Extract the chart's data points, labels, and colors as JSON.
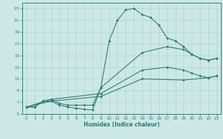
{
  "xlabel": "Humidex (Indice chaleur)",
  "bg_color": "#cce8e4",
  "grid_color": "#aad4cc",
  "line_color": "#2d7a6e",
  "xlim": [
    -0.5,
    23.5
  ],
  "ylim": [
    5,
    24
  ],
  "xticks": [
    0,
    1,
    2,
    3,
    4,
    5,
    6,
    7,
    8,
    9,
    10,
    11,
    12,
    13,
    14,
    15,
    16,
    17,
    18,
    19,
    20,
    21,
    22,
    23
  ],
  "yticks": [
    5,
    7,
    9,
    11,
    13,
    15,
    17,
    19,
    21,
    23
  ],
  "line1_x": [
    0,
    1,
    2,
    3,
    4,
    5,
    6,
    7,
    8,
    9,
    10,
    11,
    12,
    13,
    14,
    15,
    16,
    17,
    18,
    19,
    20,
    21,
    22,
    23
  ],
  "line1_y": [
    6.2,
    6.2,
    7.2,
    7.2,
    6.5,
    6.2,
    6.0,
    5.8,
    5.7,
    9.5,
    17.5,
    21.0,
    22.8,
    23.0,
    22.0,
    21.5,
    20.2,
    18.0,
    17.5,
    16.5,
    15.2,
    14.5,
    14.2,
    14.5
  ],
  "line2_x": [
    0,
    1,
    2,
    3,
    4,
    5,
    6,
    7,
    8,
    9,
    14,
    17,
    19,
    20,
    21,
    22,
    23
  ],
  "line2_y": [
    6.2,
    6.2,
    7.2,
    7.5,
    6.8,
    6.5,
    6.5,
    6.5,
    6.5,
    9.5,
    15.5,
    16.5,
    16.0,
    15.2,
    14.5,
    14.2,
    14.5
  ],
  "line3_x": [
    0,
    3,
    9,
    14,
    17,
    19,
    20,
    21,
    22,
    23
  ],
  "line3_y": [
    6.2,
    7.5,
    8.5,
    12.5,
    13.0,
    12.5,
    12.0,
    11.5,
    11.2,
    11.5
  ],
  "line4_x": [
    0,
    3,
    9,
    14,
    19,
    22,
    23
  ],
  "line4_y": [
    6.2,
    7.2,
    8.0,
    11.0,
    10.8,
    11.2,
    11.5
  ]
}
